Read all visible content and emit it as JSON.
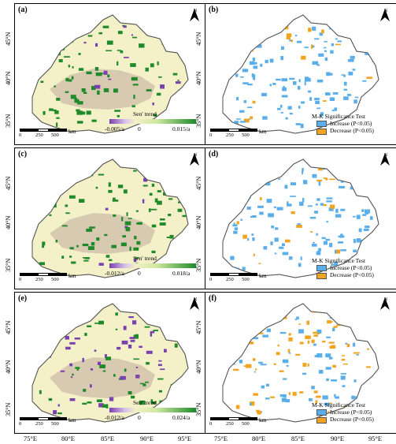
{
  "panels": [
    {
      "label": "(a)",
      "type": "sen",
      "legend_title": "Sen' trend",
      "min": "-0.005/a",
      "mid": "0",
      "max": "0.015/a"
    },
    {
      "label": "(b)",
      "type": "mk",
      "legend_title": "M-K Significance Test",
      "inc": "Increase (P<0.05)",
      "dec": "Decrease (P<0.05)"
    },
    {
      "label": "(c)",
      "type": "sen",
      "legend_title": "Sen' trend",
      "min": "-0.012/a",
      "mid": "0",
      "max": "0.018/a"
    },
    {
      "label": "(d)",
      "type": "mk",
      "legend_title": "M-K Significance Test",
      "inc": "Increase (P<0.05)",
      "dec": "Decrease (P<0.05)"
    },
    {
      "label": "(e)",
      "type": "sen",
      "legend_title": "Sen' trend",
      "min": "-0.012/a",
      "mid": "0",
      "max": "0.024/a"
    },
    {
      "label": "(f)",
      "type": "mk",
      "legend_title": "M-K Significance Test",
      "inc": "Increase (P<0.05)",
      "dec": "Decrease (P<0.05)"
    }
  ],
  "lat_ticks": [
    "45°N",
    "40°N",
    "35°N"
  ],
  "lon_ticks": [
    "75°E",
    "80°E",
    "85°E",
    "90°E",
    "95°E"
  ],
  "scale": {
    "t0": "0",
    "t1": "250",
    "t2": "500",
    "unit": "km"
  },
  "north_label": "N",
  "colors": {
    "increase": "#5aaeea",
    "decrease": "#f2a420",
    "sen_low": "#7a3fb0",
    "sen_neutral": "#f4f0c8",
    "sen_high": "#1f8a2a",
    "desert": "#d8cab0"
  }
}
